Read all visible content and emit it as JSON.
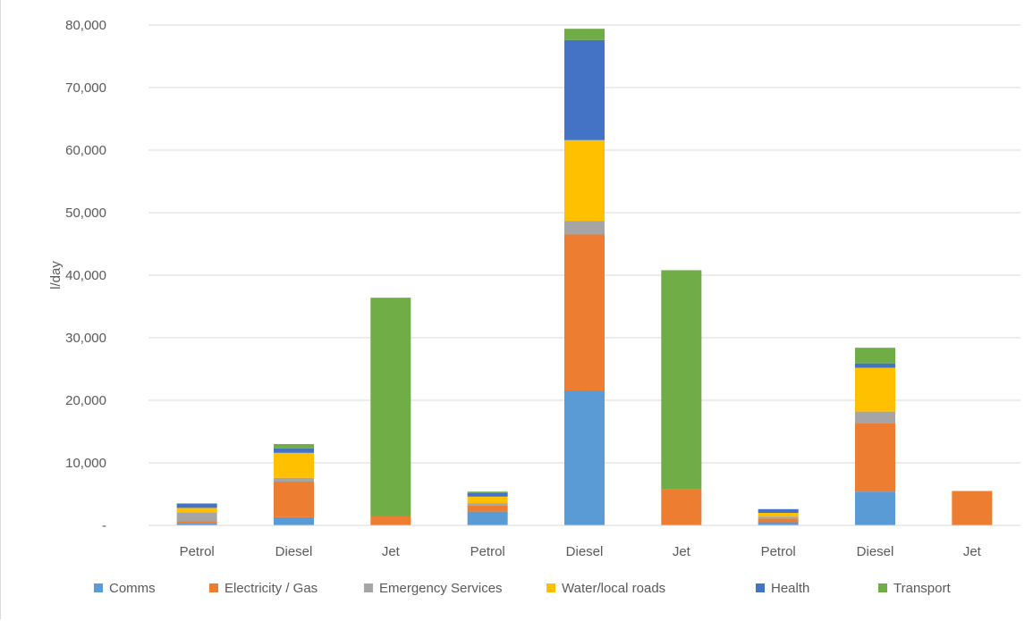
{
  "chart_data": {
    "type": "bar",
    "stacked": true,
    "title": "",
    "xlabel": "",
    "ylabel": "l/day",
    "ylim": [
      0,
      80000
    ],
    "yticks": [
      0,
      10000,
      20000,
      30000,
      40000,
      50000,
      60000,
      70000,
      80000
    ],
    "ytick_labels": [
      "-",
      "10,000",
      "20,000",
      "30,000",
      "40,000",
      "50,000",
      "60,000",
      "70,000",
      "80,000"
    ],
    "categories": [
      "Petrol",
      "Diesel",
      "Jet",
      "Petrol",
      "Diesel",
      "Jet",
      "Petrol",
      "Diesel",
      "Jet"
    ],
    "grid": true,
    "legend_position": "bottom",
    "series": [
      {
        "name": "Comms",
        "color": "#5b9bd5",
        "values": [
          300,
          1300,
          0,
          2200,
          21500,
          0,
          500,
          5400,
          0
        ]
      },
      {
        "name": "Electricity / Gas",
        "color": "#ed7d31",
        "values": [
          400,
          5700,
          1500,
          1000,
          25000,
          5800,
          600,
          11000,
          5500
        ]
      },
      {
        "name": "Emergency Services",
        "color": "#a5a5a5",
        "values": [
          1400,
          600,
          0,
          300,
          2200,
          0,
          300,
          1800,
          0
        ]
      },
      {
        "name": "Water/local roads",
        "color": "#ffc000",
        "values": [
          700,
          4000,
          0,
          1100,
          12900,
          0,
          600,
          7000,
          0
        ]
      },
      {
        "name": "Health",
        "color": "#4472c4",
        "values": [
          700,
          700,
          0,
          600,
          16000,
          0,
          600,
          700,
          0
        ]
      },
      {
        "name": "Transport",
        "color": "#70ad47",
        "values": [
          0,
          700,
          34900,
          200,
          1800,
          35000,
          0,
          2500,
          0
        ]
      }
    ]
  }
}
